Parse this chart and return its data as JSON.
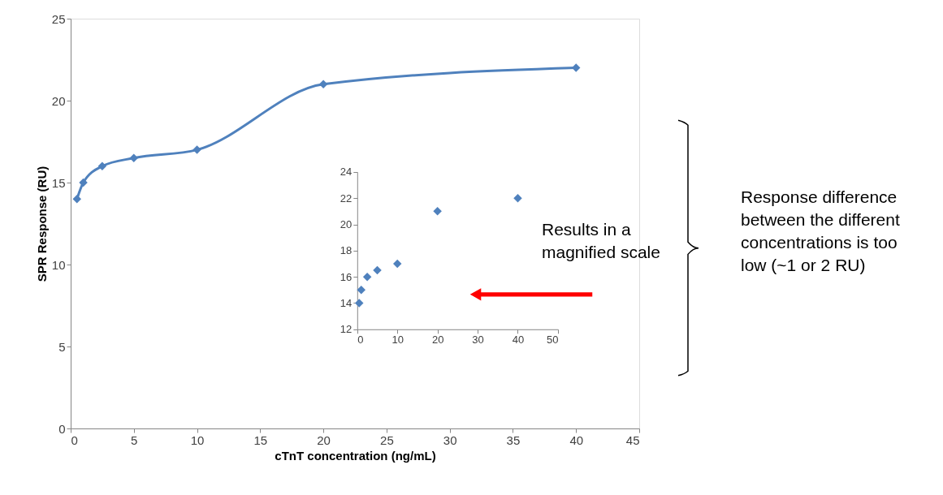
{
  "chart_data": [
    {
      "type": "line",
      "xlabel": "cTnT concentration (ng/mL)",
      "ylabel": "SPR Response (RU)",
      "x": [
        0.5,
        1,
        2.5,
        5,
        10,
        20,
        40
      ],
      "series": [
        {
          "color": "#4f81bd",
          "values": [
            14,
            15,
            16,
            16.5,
            17,
            21,
            22
          ]
        }
      ],
      "marker": "diamond",
      "line_style": "solid",
      "xlim": [
        0,
        45
      ],
      "xticks": [
        0,
        5,
        10,
        15,
        20,
        25,
        30,
        35,
        40,
        45
      ],
      "ylim": [
        0,
        25
      ],
      "yticks": [
        0,
        5,
        10,
        15,
        20,
        25
      ],
      "grid": false,
      "annotations": [
        "Response difference between the different concentrations is too low (~1 or 2 RU)"
      ]
    },
    {
      "type": "scatter",
      "x": [
        0.5,
        1,
        2.5,
        5,
        10,
        20,
        40
      ],
      "series": [
        {
          "color": "#4f81bd",
          "values": [
            14,
            15,
            16,
            16.5,
            17,
            21,
            22
          ]
        }
      ],
      "marker": "diamond",
      "xlim": [
        0,
        50
      ],
      "xticks": [
        0,
        10,
        20,
        30,
        40,
        50
      ],
      "ylim": [
        12,
        24
      ],
      "yticks": [
        12,
        14,
        16,
        18,
        20,
        22,
        24
      ],
      "grid": false,
      "annotations": [
        "Results in a magnified scale"
      ]
    }
  ]
}
